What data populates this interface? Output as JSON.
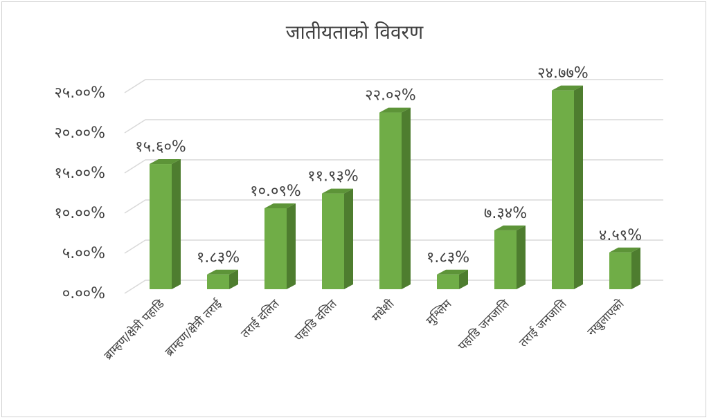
{
  "chart_data": {
    "type": "bar",
    "title": "जातीयताको विवरण",
    "categories": [
      "ब्राम्हण/क्षेत्री पहाडि",
      "ब्राम्हण/क्षेत्री तराई",
      "तराई दलित",
      "पहाडि दलित",
      "मधेशी",
      "मुश्लिम",
      "पहाडि जनजाति",
      "तराई जनजाति",
      "नखुलाएको"
    ],
    "values": [
      15.6,
      1.83,
      10.09,
      11.93,
      22.02,
      1.83,
      7.34,
      24.77,
      4.59
    ],
    "data_labels": [
      "१५.६०%",
      "१.८३%",
      "१०.०९%",
      "११.९३%",
      "२२.०२%",
      "१.८३%",
      "७.३४%",
      "२४.७७%",
      "४.५९%"
    ],
    "y_ticks": [
      0,
      5,
      10,
      15,
      20,
      25
    ],
    "y_tick_labels": [
      "०.००%",
      "५.००%",
      "१०.००%",
      "१५.००%",
      "२०.००%",
      "२५.००%"
    ],
    "ylim": [
      0,
      25
    ],
    "grid": true,
    "legend": "none",
    "colors": {
      "bar": "#70ad47",
      "bar_side": "#4e7d2f",
      "bar_top": "#5d9438",
      "grid": "#d9d9d9",
      "text": "#404040"
    }
  }
}
